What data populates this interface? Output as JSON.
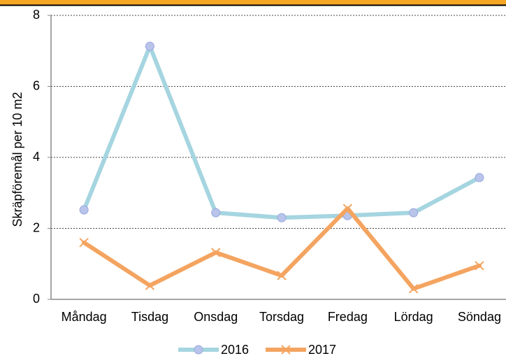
{
  "chart_data": {
    "type": "line",
    "y_label": "Skräpföremål per 10 m2",
    "categories": [
      "Måndag",
      "Tisdag",
      "Onsdag",
      "Torsdag",
      "Fredag",
      "Lördag",
      "Söndag"
    ],
    "series": [
      {
        "name": "2016",
        "color": "#a5d5e0",
        "marker": "circle",
        "values": [
          2.52,
          7.13,
          2.44,
          2.3,
          2.36,
          2.44,
          3.43
        ]
      },
      {
        "name": "2017",
        "color": "#f4a460",
        "marker": "x",
        "values": [
          1.6,
          0.39,
          1.32,
          0.67,
          2.56,
          0.3,
          0.95
        ]
      }
    ],
    "ylim": [
      0,
      8
    ],
    "yticks": [
      0,
      2,
      4,
      6,
      8
    ],
    "grid": true,
    "legend": "bottom"
  }
}
